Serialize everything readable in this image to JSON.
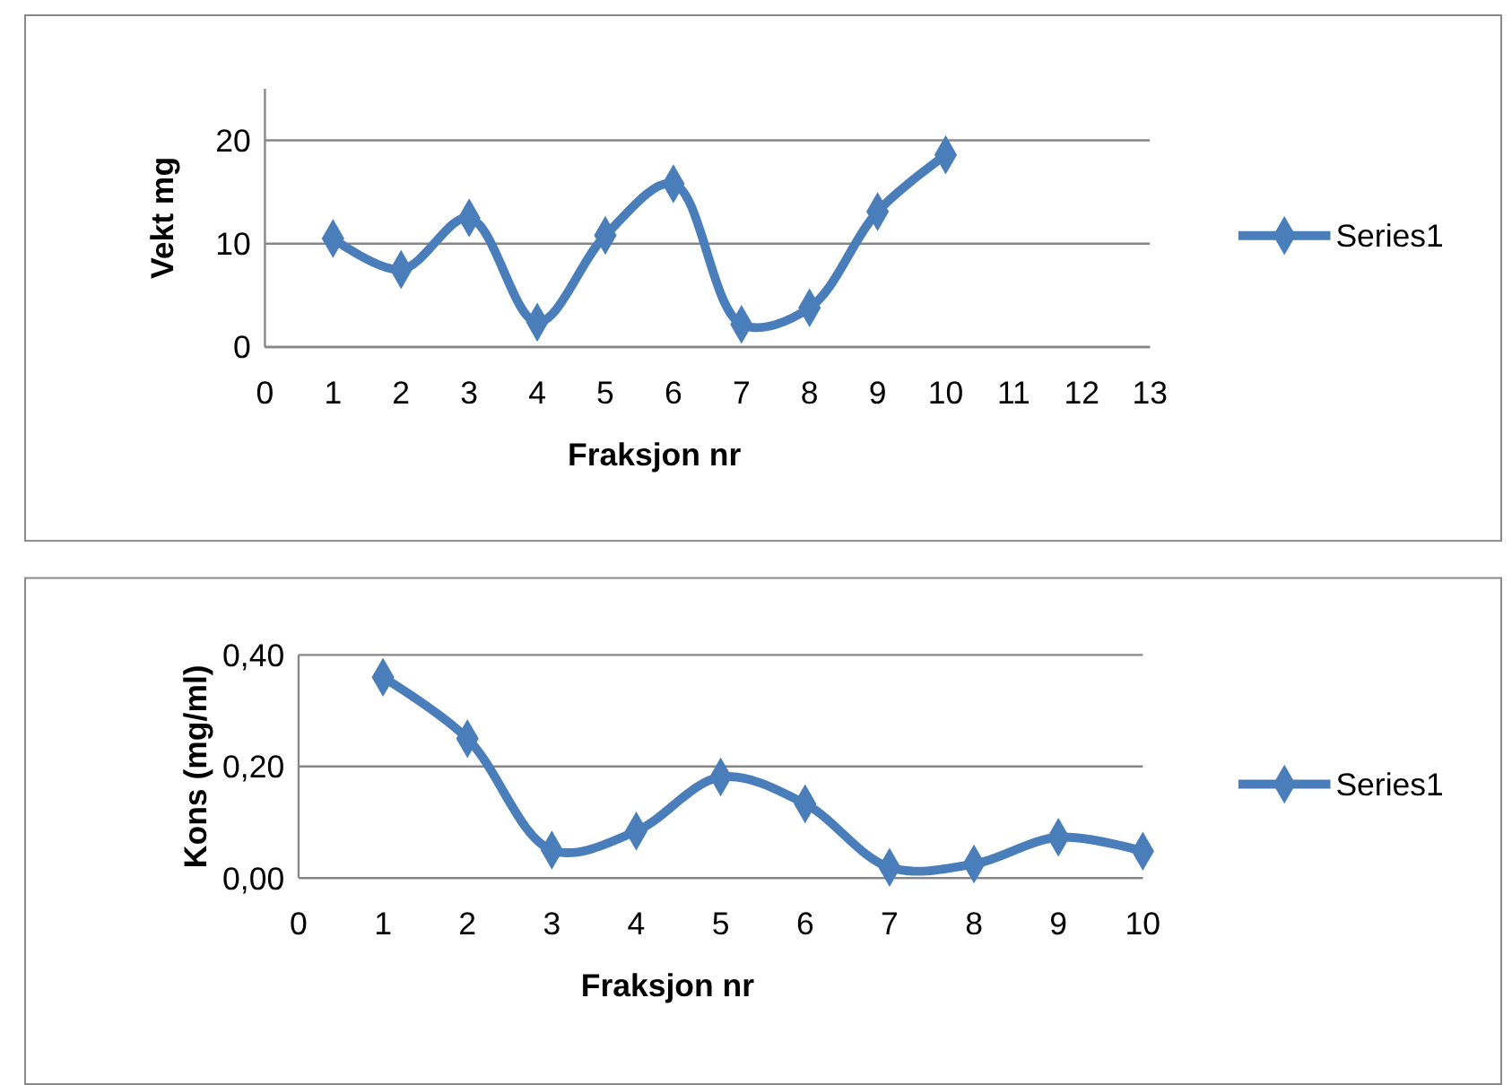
{
  "chart_data": [
    {
      "type": "line",
      "xlabel": "Fraksjon nr",
      "ylabel": "Vekt mg",
      "x": [
        1,
        2,
        3,
        4,
        5,
        6,
        7,
        8,
        9,
        10
      ],
      "xlim": [
        0,
        13
      ],
      "xticks": [
        0,
        1,
        2,
        3,
        4,
        5,
        6,
        7,
        8,
        9,
        10,
        11,
        12,
        13
      ],
      "ylim": [
        0,
        25
      ],
      "yticks": [
        0,
        10,
        20
      ],
      "grid": "y",
      "legend": "right",
      "marker": "diamond",
      "series": [
        {
          "name": "Series1",
          "color": "#4a7ebb",
          "values": [
            10.5,
            7.5,
            12.5,
            2.4,
            10.8,
            15.8,
            2.2,
            3.8,
            13.1,
            18.6
          ]
        }
      ]
    },
    {
      "type": "line",
      "xlabel": "Fraksjon nr",
      "ylabel": "Kons (mg/ml)",
      "x": [
        1,
        2,
        3,
        4,
        5,
        6,
        7,
        8,
        9,
        10
      ],
      "xlim": [
        0,
        10
      ],
      "xticks": [
        0,
        1,
        2,
        3,
        4,
        5,
        6,
        7,
        8,
        9,
        10
      ],
      "ylim": [
        0,
        0.4
      ],
      "yticks": [
        {
          "value": 0,
          "label": "0,00"
        },
        {
          "value": 0.2,
          "label": "0,20"
        },
        {
          "value": 0.4,
          "label": "0,40"
        }
      ],
      "grid": "y",
      "legend": "right",
      "marker": "diamond",
      "series": [
        {
          "name": "Series1",
          "color": "#4a7ebb",
          "values": [
            0.36,
            0.25,
            0.05,
            0.084,
            0.181,
            0.133,
            0.019,
            0.025,
            0.073,
            0.048
          ]
        }
      ]
    }
  ]
}
